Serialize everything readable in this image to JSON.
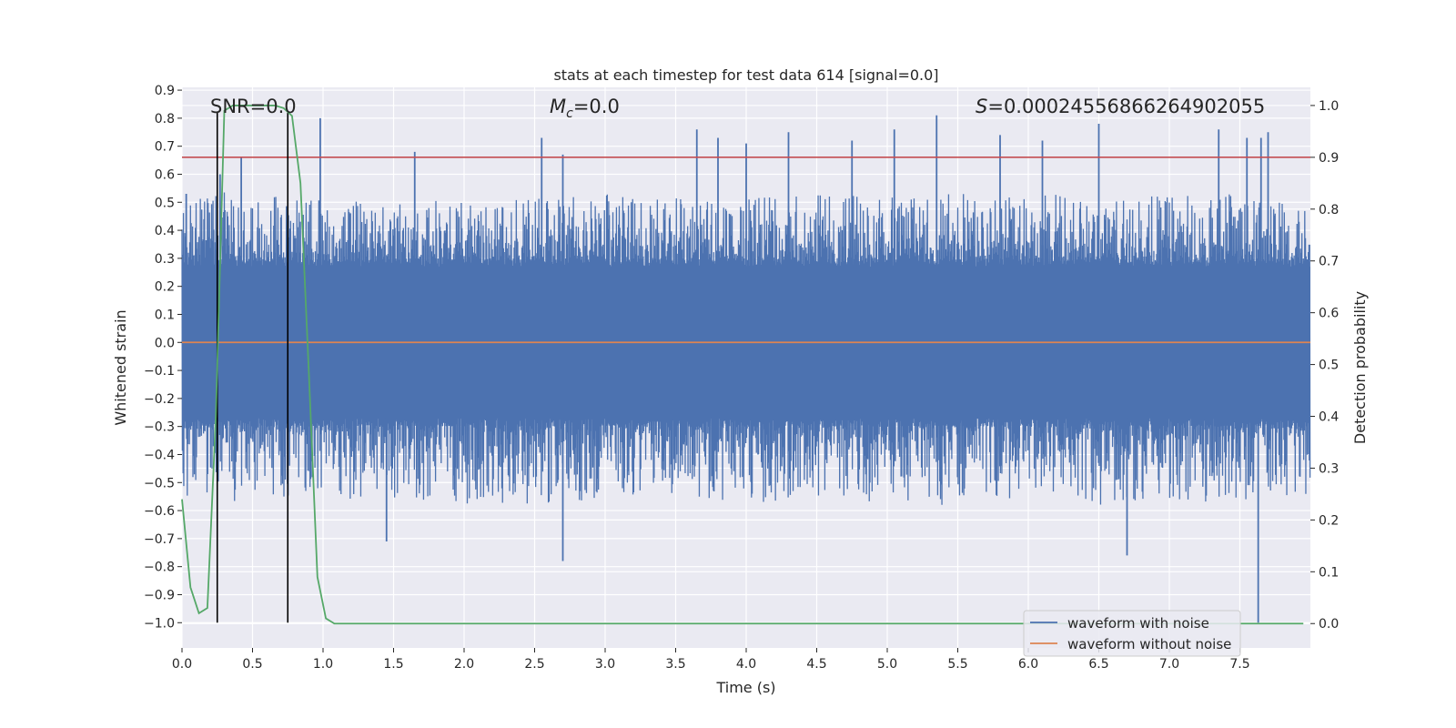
{
  "chart_data": {
    "type": "line",
    "title": "stats at each timestep for test data 614 [signal=0.0]",
    "xlabel": "Time (s)",
    "ylabel": "Whitened strain",
    "y2label": "Detection probability",
    "xlim": [
      0.0,
      8.0
    ],
    "ylim": [
      -1.09,
      0.91
    ],
    "y2lim": [
      -0.047,
      1.035
    ],
    "xticks": [
      "0.0",
      "0.5",
      "1.0",
      "1.5",
      "2.0",
      "2.5",
      "3.0",
      "3.5",
      "4.0",
      "4.5",
      "5.0",
      "5.5",
      "6.0",
      "6.5",
      "7.0",
      "7.5"
    ],
    "yticks": [
      "0.9",
      "0.8",
      "0.7",
      "0.6",
      "0.5",
      "0.4",
      "0.3",
      "0.2",
      "0.1",
      "0.0",
      "-0.1",
      "-0.2",
      "-0.3",
      "-0.4",
      "-0.5",
      "-0.6",
      "-0.7",
      "-0.8",
      "-0.9",
      "-1.0"
    ],
    "y2ticks": [
      "0.0",
      "0.1",
      "0.2",
      "0.3",
      "0.4",
      "0.5",
      "0.6",
      "0.7",
      "0.8",
      "0.9",
      "1.0"
    ],
    "grid": true,
    "legend_position": "lower-right",
    "annotations": {
      "snr_prefix": "SNR=",
      "snr_value": "0.0",
      "mc_value": "=0.0",
      "s_value": "=0.00024556866264902055"
    },
    "threshold_y2": 0.9,
    "window_lines_x": [
      0.25,
      0.75
    ],
    "series": [
      {
        "name": "waveform with noise",
        "color": "#4c72b0",
        "envelope": {
          "x": [
            0.0,
            0.1,
            0.3,
            0.5,
            1.0,
            1.5,
            2.0,
            2.5,
            3.0,
            3.5,
            4.0,
            4.5,
            5.0,
            5.5,
            6.0,
            6.5,
            7.0,
            7.5,
            8.0
          ],
          "upper_typical": [
            0.45,
            0.45,
            0.48,
            0.47,
            0.45,
            0.45,
            0.46,
            0.46,
            0.47,
            0.46,
            0.46,
            0.47,
            0.47,
            0.48,
            0.47,
            0.47,
            0.46,
            0.47,
            0.45
          ],
          "lower_typical": [
            -0.5,
            -0.48,
            -0.52,
            -0.5,
            -0.5,
            -0.5,
            -0.52,
            -0.52,
            -0.5,
            -0.48,
            -0.52,
            -0.5,
            -0.52,
            -0.52,
            -0.5,
            -0.52,
            -0.52,
            -0.5,
            -0.5
          ]
        },
        "spikes": {
          "x": [
            0.03,
            0.27,
            0.42,
            0.98,
            1.65,
            2.55,
            2.7,
            3.65,
            3.8,
            4.0,
            4.3,
            4.75,
            5.05,
            5.35,
            5.8,
            6.1,
            6.5,
            7.35,
            7.55,
            7.7,
            7.65,
            2.7,
            1.45,
            6.7,
            7.63
          ],
          "y": [
            0.53,
            0.6,
            0.66,
            0.8,
            0.68,
            0.73,
            0.67,
            0.76,
            0.73,
            0.71,
            0.75,
            0.72,
            0.76,
            0.81,
            0.74,
            0.72,
            0.78,
            0.76,
            0.73,
            0.75,
            0.73,
            -0.78,
            -0.71,
            -0.76,
            -1.0
          ]
        }
      },
      {
        "name": "waveform without noise",
        "color": "#dd8452",
        "x": [
          0.0,
          8.0
        ],
        "y": [
          0.0,
          0.0
        ]
      },
      {
        "name": "Detection probability",
        "color": "#55a868",
        "axis": "right",
        "x": [
          0.0,
          0.06,
          0.12,
          0.18,
          0.24,
          0.3,
          0.36,
          0.42,
          0.48,
          0.54,
          0.6,
          0.66,
          0.72,
          0.78,
          0.84,
          0.9,
          0.96,
          1.02,
          1.08,
          1.2,
          1.5,
          2.0,
          3.0,
          4.0,
          5.0,
          6.0,
          7.0,
          7.95
        ],
        "y": [
          0.24,
          0.07,
          0.02,
          0.03,
          0.4,
          0.99,
          1.0,
          1.0,
          1.0,
          1.0,
          1.0,
          1.0,
          0.995,
          0.98,
          0.85,
          0.48,
          0.09,
          0.01,
          0.0,
          0.0,
          0.0,
          0.0,
          0.0,
          0.0,
          0.0,
          0.0,
          0.0,
          0.0
        ]
      }
    ]
  }
}
